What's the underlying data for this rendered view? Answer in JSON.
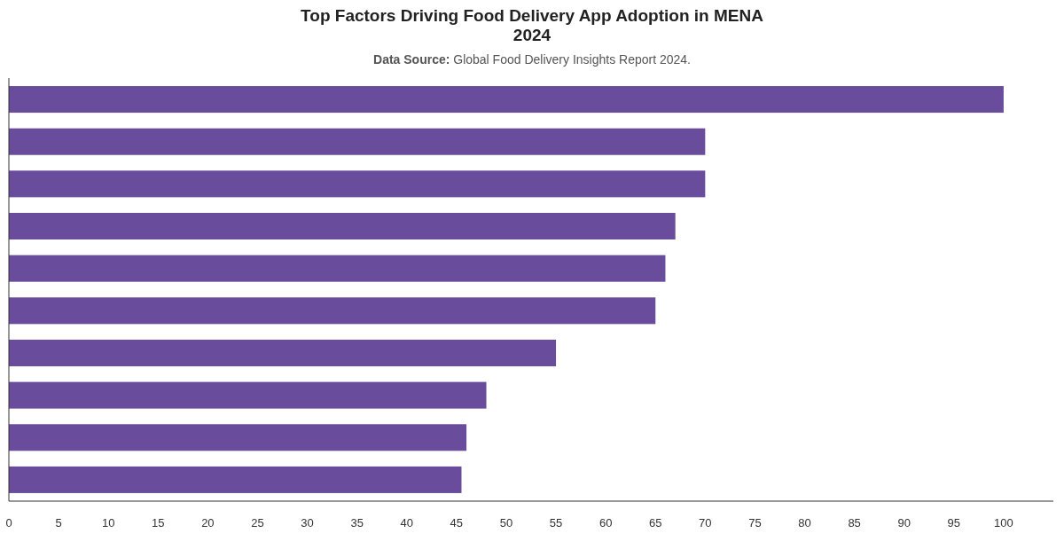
{
  "chart_data": {
    "type": "bar",
    "orientation": "horizontal",
    "title": "Top Factors Driving Food Delivery App Adoption in MENA 2024",
    "subtitle": "Data Source: Global Food Delivery Insights Report 2024.",
    "categories": [
      null,
      null,
      null,
      null,
      null,
      null,
      null,
      null,
      null,
      null
    ],
    "values": [
      100,
      70,
      70,
      67,
      66,
      65,
      55,
      48,
      46,
      45.5
    ],
    "color": "#6a4c9c",
    "xlim": [
      0,
      105
    ],
    "xticks": [
      0,
      5,
      10,
      15,
      20,
      25,
      30,
      35,
      40,
      45,
      50,
      55,
      60,
      65,
      70,
      75,
      80,
      85,
      90,
      95,
      100
    ],
    "grid": false
  }
}
